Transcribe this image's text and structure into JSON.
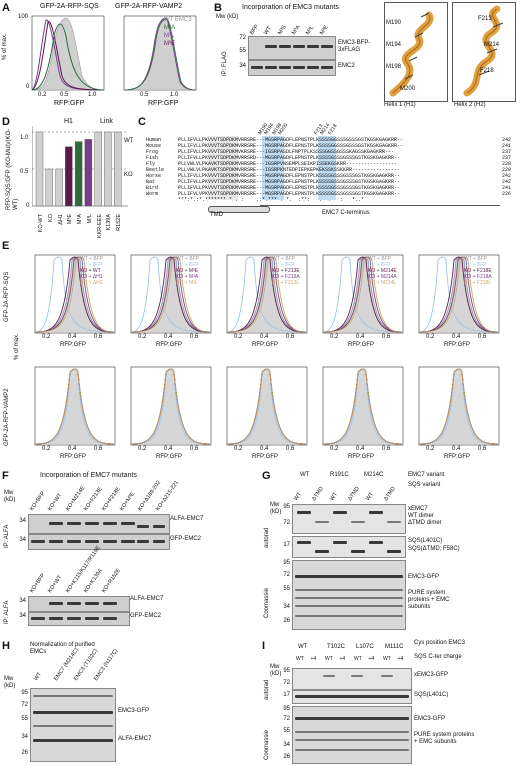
{
  "colors": {
    "wt": "#999999",
    "m3a": "#2e6b3a",
    "m3l": "#7a3b8a",
    "m3e": "#5a1a4a",
    "bfp": "#9ec7e8",
    "gold": "#c8a86a",
    "highlight": "#5aa9e0",
    "helix": "#e0a040"
  },
  "panelA": {
    "label": "A",
    "left_title": "GFP-2A-RFP-SQS",
    "right_title": "GFP-2A-RFP-VAMP2",
    "ylabel": "% of max.",
    "xlabel": "RFP:GFP",
    "left_xticks": [
      "0.2",
      "0.5",
      "1.0"
    ],
    "right_xticks": [
      "0.5",
      "1.0"
    ],
    "yticks": [
      "100",
      "0"
    ],
    "legend": [
      "WT EMC3",
      "M³A",
      "M³L",
      "M³E"
    ]
  },
  "panelB": {
    "label": "B",
    "title": "Incorporation of EMC3 mutants",
    "mw": "Mw (kD)",
    "lanes": [
      "BFP",
      "WT",
      "M³S",
      "M³A",
      "M³L",
      "M³E"
    ],
    "markers": [
      "72",
      "55",
      "34"
    ],
    "band1": "EMC3-BFP-3xFLAG",
    "band2": "EMC2",
    "side": "IP: FLAG"
  },
  "panelHelix": {
    "h1_labels": [
      "M190",
      "M194",
      "M198",
      "M200"
    ],
    "h2_labels": [
      "F213",
      "M214",
      "F218"
    ],
    "h1": "Helix 1 (H1)",
    "h2": "Helix 2 (H2)"
  },
  "panelC": {
    "label": "C",
    "species": [
      "Human",
      "Mouse",
      "Frog",
      "Fish",
      "Fly",
      "Beetle",
      "Horse",
      "Bat",
      "Bird",
      "Worm"
    ],
    "ends": [
      "242",
      "241",
      "237",
      "237",
      "228",
      "229",
      "242",
      "242",
      "241",
      "226"
    ],
    "tmd": "TMD",
    "cterm": "EMC7 C-terminus",
    "top_labels": [
      "M190",
      "M194",
      "M198",
      "M200",
      "F213",
      "M214",
      "F218"
    ],
    "seqs": [
      "PLLIFVLLPKVVVTSDPDKMVRRSRE---MGSRPAGDFLEPNSTPLKSSSSGGSSSGSSSGSTKGSKGAGKRR--",
      "PLLIFVLLPKVVVTSDPDKMVRRSRE---MGSRPAGDFLEPNSTPLKSSSSGGSSSGSSSGSTKGSKGAGKRR--",
      "PLLIFVLLPKVVVTSDPDKMVKRSRE---IGSRPASDLFNPTPLKSSSSGGSSGSSSKAGSSKGAGKRR---",
      "PLLIFVLLPKVVVTSDPDKMVRRSRD---MGSRPAGDFLEPNSTPLKSSSSGSSSGSSSGSTKGSKGAGKRR--",
      "PLLVWLVLPKAVKTSDPDKMVRRSRE---IGSRPVNSEMPLSEIKPISSEKGSKRR-----------------",
      "PLLVWLVLPKAVKTSDPDKMVRRSRE---IGSRPKNTEDPIEPKEPKEKSSKSSKKRR----------------",
      "PLLIFVLLPKVVVTSDPDKMVRRSRE---MGSRPAGDFLEPNSTPLKSSSSGSSSGSSSGSTKGSKGAGKRR--",
      "PLLIFVLLPKVVVTSDPDKMVRRSRE---MGSRPAGDFLEPNSTPLKSSSSGSSSGSSSGSTKGSKGAGKRR--",
      "PLLIFVLLPKVVVTSDPDKMVRRSRE---MGSRPAGDFLEPNSTPLKSSSSGSSSGSSSGSTKGSKGAGKRR--",
      "PLLIFVLVPKVVVTSDPDKMVRRSRE---MGSRPAGDFLEPNSTPLKSSSSGSSSGSSSGSTKGSKGAGKRR--"
    ],
    "cons": "***:*.:*.******* * . :    .:*.*** . *.  :**:   .  .   :   *..*"
  },
  "panelD": {
    "label": "D",
    "ylabel": "RFP-SQS:GFP (KO-Mut)/(KO-WT)",
    "group_h1": "H1",
    "group_link": "Link",
    "wt": "WT",
    "ko": "KO",
    "yticks": [
      "1.0",
      "0.5",
      "0"
    ],
    "categories": [
      "KO-WT",
      "KO",
      "ΔH1",
      "M³E",
      "M³A",
      "M³L",
      "KKR-EEE",
      "K139A",
      "R152E"
    ]
  },
  "chart_data": {
    "type": "bar",
    "categories": [
      "KO-WT",
      "KO",
      "ΔH1",
      "M³E",
      "M³A",
      "M³L",
      "KKR-EEE",
      "K139A",
      "R152E"
    ],
    "values": [
      1.0,
      0.5,
      0.5,
      0.8,
      0.87,
      0.9,
      1.0,
      1.0,
      1.0
    ],
    "ylim": [
      0,
      1.0
    ]
  },
  "panelE": {
    "label": "E",
    "row1": "GFP-2A-RFP-SQS",
    "row2": "GFP-2A-RFP-VAMP2",
    "ylabel": "% of max.",
    "xlabel": "RFP:GFP",
    "xticks": [
      "0.2",
      "0.4",
      "0.6"
    ],
    "legends": [
      [
        "WT + BFP",
        "KO + BFP",
        "KO + WT",
        "KO + ΔH1",
        "KO + ΔH2"
      ],
      [
        "WT + BFP",
        "KO + BFP",
        "KO + M³E",
        "KO + M³A",
        "KO + M³L"
      ],
      [
        "WT + BFP",
        "KO + BFP",
        "KO + F213E",
        "KO + F213A",
        "KO + F213L"
      ],
      [
        "WT + BFP",
        "KO + BFP",
        "KO + M214E",
        "KO + M214A",
        "KO + M214L"
      ],
      [
        "WT + BFP",
        "KO + BFP",
        "KO + F218E",
        "KO + F218A",
        "KO + F218L"
      ]
    ]
  },
  "panelF": {
    "label": "F",
    "title": "Incorporation of EMC7 mutants",
    "lanes_top": [
      "KO+BFP",
      "KO+WT",
      "KO+M214E",
      "KO+F213E",
      "KO+F218E",
      "KO+M³E",
      "KO+Δ189-202",
      "KO+Δ215-221"
    ],
    "lanes_bottom": [
      "KO+BFP",
      "KO+WT",
      "KO+K115/K117/R119E",
      "KO+K139A",
      "KO+R152E"
    ],
    "markers_top": [
      "34",
      "34"
    ],
    "markers_bottom": [
      "34",
      "34"
    ],
    "band1": "ALFA-EMC7",
    "band2": "GFP-EMC2",
    "side": "IP: ALFA",
    "mw": "Mw (kD)"
  },
  "panelG": {
    "label": "G",
    "variants": [
      "WT",
      "R191C",
      "M214C"
    ],
    "variant_label": "EMC7 variant",
    "sqs_label": "SQS variant",
    "lanes": [
      "WT",
      "ΔTMD",
      "WT",
      "ΔTMD",
      "WT",
      "ΔTMD"
    ],
    "markers": [
      "95",
      "72",
      "17"
    ],
    "markers2": [
      "95",
      "72",
      "55",
      "34",
      "26"
    ],
    "bands": [
      "xEMC7",
      "WT dimer",
      "ΔTMD dimer",
      "SQS(L401C)",
      "SQS(ΔTMD; F58C)"
    ],
    "coomassie_bands": [
      "EMC3-GFP",
      "PURE system proteins + EMC subunits"
    ],
    "autorad": "autorad",
    "coomassie": "Coomassie",
    "mw": "Mw (kD)"
  },
  "panelH": {
    "label": "H",
    "title": "Normalization of purified EMCs",
    "lanes": [
      "WT",
      "EMC7 (M214C)",
      "EMC3 (T102C)",
      "EMC3 (N117C)"
    ],
    "markers": [
      "95",
      "72",
      "55",
      "34",
      "26"
    ],
    "bands": [
      "EMC3-GFP",
      "ALFA-EMC7"
    ],
    "mw": "Mw (kD)"
  },
  "panelI": {
    "label": "I",
    "cys_label": "Cys position EMC3",
    "charge_label": "SQS C-ter charge",
    "groups": [
      "WT",
      "T102C",
      "L107C",
      "M111C"
    ],
    "lanes": [
      "WT",
      "+4",
      "WT",
      "+4",
      "WT",
      "+4",
      "WT",
      "+4"
    ],
    "markers": [
      "95",
      "72",
      "17"
    ],
    "markers2": [
      "95",
      "72",
      "55",
      "34",
      "26"
    ],
    "bands": [
      "xEMC3-GFP",
      "SQS(L401C)"
    ],
    "coomassie_bands": [
      "EMC3-GFP",
      "PURE system proteins + EMC subunits"
    ],
    "autorad": "autorad",
    "coomassie": "Coomassie",
    "mw": "Mw (kD)"
  }
}
